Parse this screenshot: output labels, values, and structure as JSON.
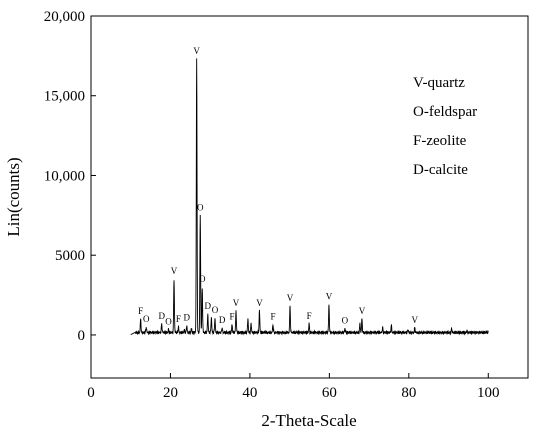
{
  "chart_data": {
    "type": "line",
    "title": "",
    "xlabel": "2-Theta-Scale",
    "ylabel": "Lin(counts)",
    "xlim": [
      0,
      110
    ],
    "ylim": [
      -2700,
      20000
    ],
    "x_ticks": [
      0,
      20,
      40,
      60,
      80,
      100
    ],
    "y_ticks": [
      0,
      5000,
      10000,
      15000,
      20000
    ],
    "y_tick_labels": [
      "0",
      "5000",
      "10,000",
      "15,000",
      "20,000"
    ],
    "legend": [
      "V-quartz",
      "O-feldspar",
      "F-zeolite",
      "D-calcite"
    ],
    "grid": false,
    "baseline": 150,
    "x_range": [
      10,
      100
    ],
    "peaks": [
      {
        "x": 12.5,
        "y": 1000,
        "label": "F"
      },
      {
        "x": 13.9,
        "y": 500,
        "label": "O"
      },
      {
        "x": 17.8,
        "y": 700,
        "label": "D"
      },
      {
        "x": 19.5,
        "y": 350,
        "label": "O"
      },
      {
        "x": 20.9,
        "y": 3500,
        "label": "V"
      },
      {
        "x": 22.0,
        "y": 500,
        "label": "F"
      },
      {
        "x": 23.5,
        "y": 300
      },
      {
        "x": 24.1,
        "y": 600,
        "label": "D"
      },
      {
        "x": 25.3,
        "y": 400
      },
      {
        "x": 26.6,
        "y": 17300,
        "label": "V"
      },
      {
        "x": 27.5,
        "y": 7500,
        "label": "O"
      },
      {
        "x": 28.0,
        "y": 3000,
        "label": "O"
      },
      {
        "x": 29.4,
        "y": 1300,
        "label": "D"
      },
      {
        "x": 30.3,
        "y": 1100
      },
      {
        "x": 31.2,
        "y": 1050,
        "label": "O"
      },
      {
        "x": 33.0,
        "y": 450,
        "label": "D"
      },
      {
        "x": 35.5,
        "y": 650,
        "label": "F"
      },
      {
        "x": 36.5,
        "y": 1500,
        "label": "V"
      },
      {
        "x": 39.5,
        "y": 1000
      },
      {
        "x": 40.3,
        "y": 700
      },
      {
        "x": 42.4,
        "y": 1500,
        "label": "V"
      },
      {
        "x": 45.8,
        "y": 650,
        "label": "F"
      },
      {
        "x": 50.1,
        "y": 1800,
        "label": "V"
      },
      {
        "x": 54.9,
        "y": 700,
        "label": "F"
      },
      {
        "x": 59.9,
        "y": 1900,
        "label": "V"
      },
      {
        "x": 63.9,
        "y": 400,
        "label": "O"
      },
      {
        "x": 67.7,
        "y": 700
      },
      {
        "x": 68.2,
        "y": 1000,
        "label": "V"
      },
      {
        "x": 73.4,
        "y": 450
      },
      {
        "x": 75.6,
        "y": 600
      },
      {
        "x": 79.8,
        "y": 350
      },
      {
        "x": 81.5,
        "y": 450,
        "label": "V"
      },
      {
        "x": 90.8,
        "y": 400
      },
      {
        "x": 94.6,
        "y": 250
      }
    ]
  }
}
